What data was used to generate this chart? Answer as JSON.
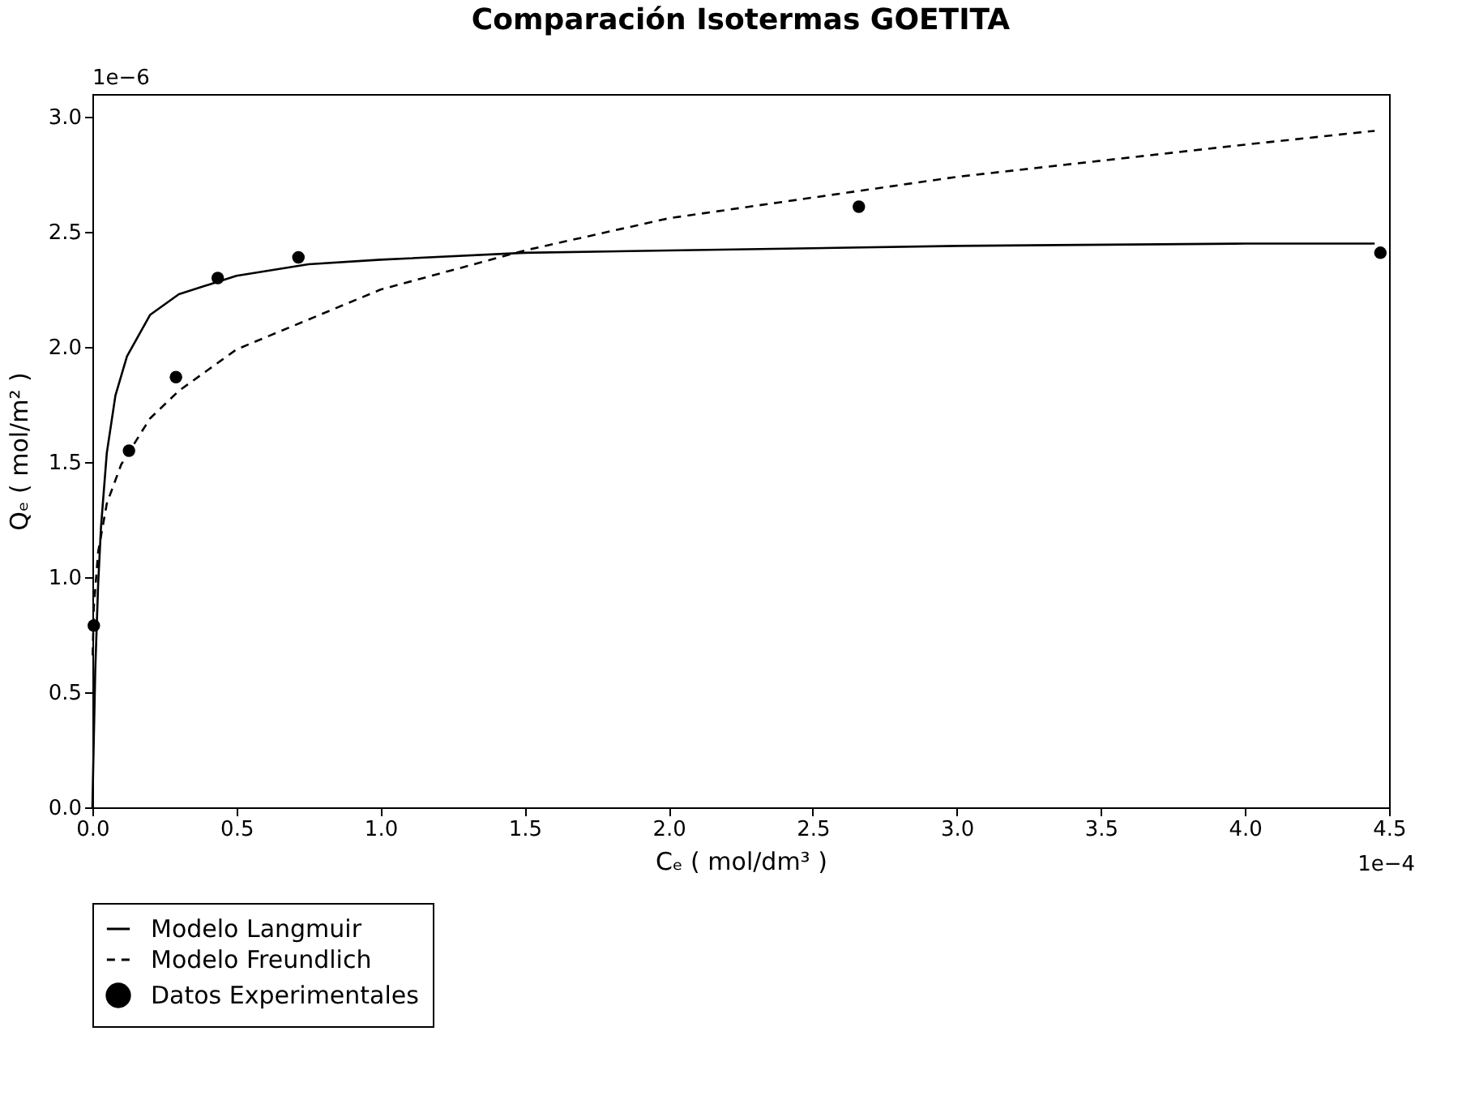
{
  "chart_data": {
    "type": "line",
    "title": "Comparación Isotermas GOETITA",
    "xlabel": "Cₑ  ( mol/dm³ )",
    "ylabel": "Qₑ  ( mol/m² )",
    "annotations": [
      "1e−6",
      "1e−4"
    ],
    "xlim": [
      0,
      4.5
    ],
    "xticks": [
      {
        "value": 0,
        "label": "0.0"
      },
      {
        "value": 0.5,
        "label": "0.5"
      },
      {
        "value": 1,
        "label": "1.0"
      },
      {
        "value": 1.5,
        "label": "1.5"
      },
      {
        "value": 2,
        "label": "2.0"
      },
      {
        "value": 2.5,
        "label": "2.5"
      },
      {
        "value": 3,
        "label": "3.0"
      },
      {
        "value": 3.5,
        "label": "3.5"
      },
      {
        "value": 4,
        "label": "4.0"
      },
      {
        "value": 4.5,
        "label": "4.5"
      }
    ],
    "ylim": [
      0,
      3.1
    ],
    "yticks": [
      {
        "value": 0,
        "label": "0.0"
      },
      {
        "value": 0.5,
        "label": "0.5"
      },
      {
        "value": 1,
        "label": "1.0"
      },
      {
        "value": 1.5,
        "label": "1.5"
      },
      {
        "value": 2,
        "label": "2.0"
      },
      {
        "value": 2.5,
        "label": "2.5"
      },
      {
        "value": 3,
        "label": "3.0"
      }
    ],
    "grid": false,
    "legend": "bottom",
    "series": [
      {
        "name": "Modelo Langmuir",
        "type": "line",
        "line_style": "solid",
        "color": "#000000",
        "x": [
          0,
          0.01,
          0.02,
          0.03,
          0.05,
          0.08,
          0.12,
          0.2,
          0.3,
          0.5,
          0.75,
          1.0,
          1.5,
          2.0,
          3.0,
          4.0,
          4.45
        ],
        "values": [
          0,
          0.6,
          0.97,
          1.22,
          1.54,
          1.79,
          1.96,
          2.14,
          2.23,
          2.31,
          2.36,
          2.38,
          2.41,
          2.42,
          2.44,
          2.45,
          2.45
        ]
      },
      {
        "name": "Modelo Freundlich",
        "type": "line",
        "line_style": "dashed",
        "color": "#000000",
        "x": [
          0.001,
          0.005,
          0.02,
          0.05,
          0.1,
          0.2,
          0.3,
          0.5,
          0.75,
          1.0,
          1.5,
          2.0,
          2.5,
          3.0,
          3.5,
          4.0,
          4.45
        ],
        "values": [
          0.66,
          0.87,
          1.11,
          1.32,
          1.49,
          1.69,
          1.81,
          1.99,
          2.12,
          2.25,
          2.42,
          2.56,
          2.65,
          2.74,
          2.81,
          2.88,
          2.94
        ]
      },
      {
        "name": "Datos Experimentales",
        "type": "scatter",
        "marker": "circle",
        "color": "#000000",
        "x": [
          0.005,
          0.127,
          0.29,
          0.435,
          0.715,
          2.66,
          4.47
        ],
        "values": [
          0.79,
          1.55,
          1.87,
          2.3,
          2.39,
          2.61,
          2.41
        ]
      }
    ]
  }
}
